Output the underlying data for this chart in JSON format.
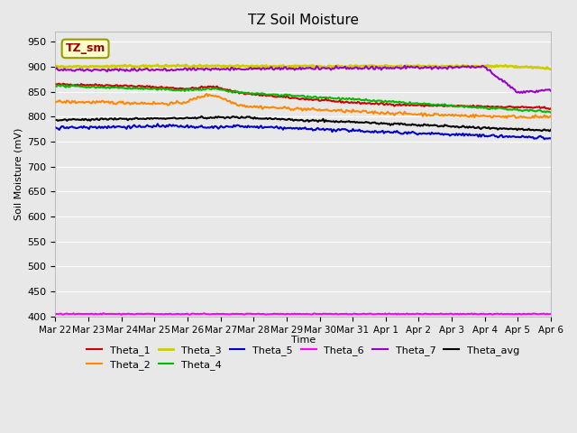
{
  "title": "TZ Soil Moisture",
  "ylabel": "Soil Moisture (mV)",
  "xlabel": "Time",
  "ylim": [
    400,
    970
  ],
  "yticks": [
    400,
    450,
    500,
    550,
    600,
    650,
    700,
    750,
    800,
    850,
    900,
    950
  ],
  "x_labels": [
    "Mar 22",
    "Mar 23",
    "Mar 24",
    "Mar 25",
    "Mar 26",
    "Mar 27",
    "Mar 28",
    "Mar 29",
    "Mar 30",
    "Mar 31",
    "Apr 1",
    "Apr 2",
    "Apr 3",
    "Apr 4",
    "Apr 5",
    "Apr 6"
  ],
  "background_color": "#e8e8e8",
  "plot_bg_color": "#e8e8e8",
  "legend_box_color": "#ffffcc",
  "legend_box_edge": "#999900",
  "annotation_text": "TZ_sm",
  "annotation_color": "#990000",
  "series": {
    "Theta_1": {
      "color": "#cc0000",
      "lw": 1.5
    },
    "Theta_2": {
      "color": "#ff8800",
      "lw": 1.5
    },
    "Theta_3": {
      "color": "#cccc00",
      "lw": 2.0
    },
    "Theta_4": {
      "color": "#00bb00",
      "lw": 1.5
    },
    "Theta_5": {
      "color": "#0000cc",
      "lw": 1.5
    },
    "Theta_6": {
      "color": "#ff00ff",
      "lw": 1.5
    },
    "Theta_7": {
      "color": "#9900cc",
      "lw": 1.5
    },
    "Theta_avg": {
      "color": "#000000",
      "lw": 1.5
    }
  }
}
